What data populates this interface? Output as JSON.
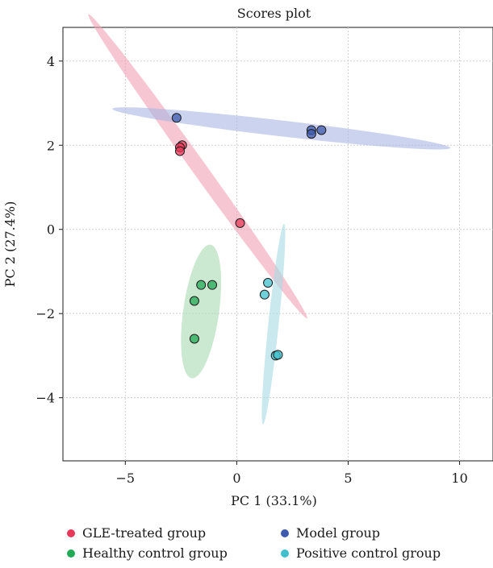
{
  "chart_data": {
    "type": "scatter",
    "title": "Scores plot",
    "xlabel": "PC 1 (33.1%)",
    "ylabel": "PC 2 (27.4%)",
    "xlim": [
      -7.8,
      11.5
    ],
    "ylim": [
      -5.5,
      4.8
    ],
    "xticks": [
      -5,
      0,
      5,
      10
    ],
    "xtick_labels": [
      "−5",
      "0",
      "5",
      "10"
    ],
    "yticks": [
      -4,
      -2,
      0,
      2,
      4
    ],
    "ytick_labels": [
      "−4",
      "−2",
      "0",
      "2",
      "4"
    ],
    "grid": true,
    "legend_position": "bottom",
    "series": [
      {
        "name": "GLE-treated group",
        "color": "#e8395a",
        "ellipse_color": "#f0a0b4",
        "points": [
          [
            -2.45,
            2.0
          ],
          [
            -2.55,
            1.95
          ],
          [
            -2.55,
            1.86
          ],
          [
            0.15,
            0.15
          ]
        ],
        "ellipse": {
          "center": [
            -1.75,
            1.5
          ],
          "angle_deg": -36.3,
          "semi_major": 6.1,
          "semi_minor": 0.24
        }
      },
      {
        "name": "Model group",
        "color": "#3d5aad",
        "ellipse_color": "#aab6e4",
        "points": [
          [
            -2.7,
            2.65
          ],
          [
            3.35,
            2.36
          ],
          [
            3.35,
            2.27
          ],
          [
            3.8,
            2.36
          ]
        ],
        "ellipse": {
          "center": [
            2.0,
            2.4
          ],
          "angle_deg": -3.5,
          "semi_major": 7.6,
          "semi_minor": 0.19
        }
      },
      {
        "name": "Healthy control group",
        "color": "#22aa55",
        "ellipse_color": "#a9d8b2",
        "points": [
          [
            -1.6,
            -1.32
          ],
          [
            -1.1,
            -1.32
          ],
          [
            -1.9,
            -1.7
          ],
          [
            -1.9,
            -2.6
          ]
        ],
        "ellipse": {
          "center": [
            -1.6,
            -1.95
          ],
          "angle_deg": 72,
          "semi_major": 1.65,
          "semi_minor": 0.78
        }
      },
      {
        "name": "Positive control group",
        "color": "#3fc0cc",
        "ellipse_color": "#a6dbe2",
        "points": [
          [
            1.4,
            -1.27
          ],
          [
            1.25,
            -1.55
          ],
          [
            1.75,
            -3.0
          ],
          [
            1.85,
            -2.98
          ]
        ],
        "ellipse": {
          "center": [
            1.65,
            -2.25
          ],
          "angle_deg": 78.7,
          "semi_major": 2.43,
          "semi_minor": 0.23
        }
      }
    ]
  }
}
